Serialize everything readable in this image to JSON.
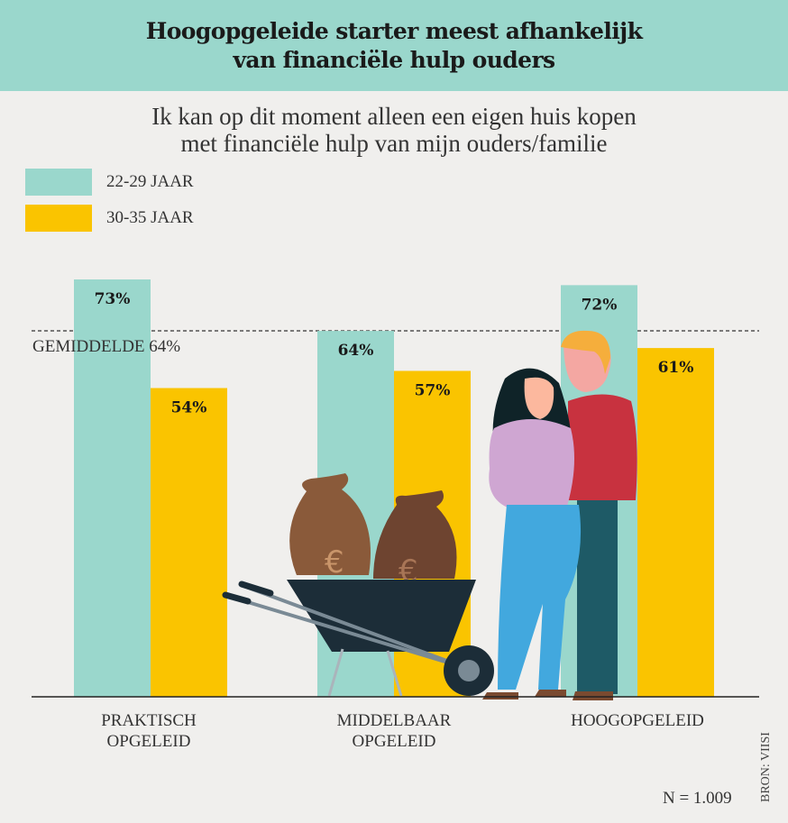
{
  "header": {
    "title_line1": "Hoogopgeleide starter meest afhankelijk",
    "title_line2": "van financiële hulp ouders"
  },
  "chart_data": {
    "type": "bar",
    "title": "Hoogopgeleide starter meest afhankelijk van financiële hulp ouders",
    "subtitle_line1": "Ik kan op dit moment alleen een eigen huis kopen",
    "subtitle_line2": "met financiële hulp van mijn ouders/familie",
    "categories": [
      [
        "PRAKTISCH",
        "OPGELEID"
      ],
      [
        "MIDDELBAAR",
        "OPGELEID"
      ],
      [
        "HOOGOPGELEID",
        ""
      ]
    ],
    "series": [
      {
        "name": "22-29 JAAR",
        "color": "#9ad7cc",
        "values": [
          73,
          64,
          72
        ],
        "labels": [
          "73%",
          "64%",
          "72%"
        ]
      },
      {
        "name": "30-35 JAAR",
        "color": "#fac400",
        "values": [
          54,
          57,
          61
        ],
        "labels": [
          "54%",
          "57%",
          "61%"
        ]
      }
    ],
    "reference_line": {
      "value": 64,
      "label": "GEMIDDELDE 64%"
    },
    "ylim": [
      0,
      100
    ],
    "grid": false,
    "legend": "top-left",
    "note": "N = 1.009",
    "source": "BRON: VIISI"
  }
}
